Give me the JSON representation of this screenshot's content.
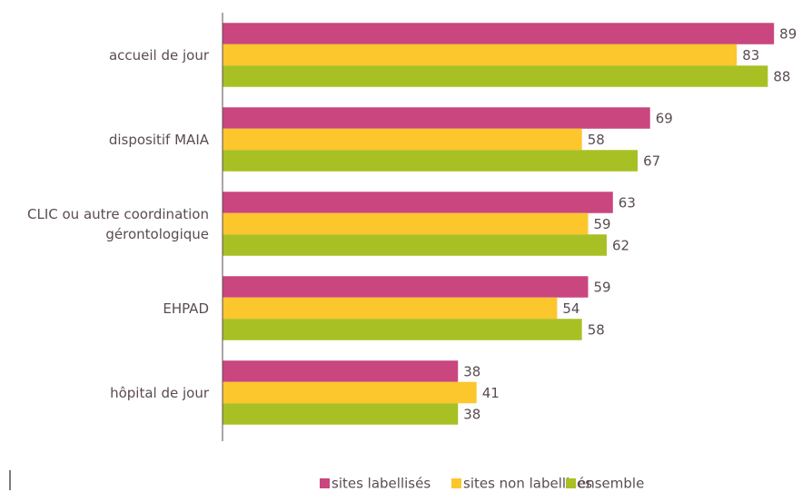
{
  "chart_data": {
    "type": "bar",
    "orientation": "horizontal",
    "categories": [
      "accueil de jour",
      "dispositif MAIA",
      "CLIC ou autre coordination gérontologique",
      "EHPAD",
      "hôpital de jour"
    ],
    "series": [
      {
        "name": "sites labellisés",
        "color": "#c9467e",
        "values": [
          89,
          69,
          63,
          59,
          38
        ]
      },
      {
        "name": "sites non labellisés",
        "color": "#fcc62d",
        "values": [
          83,
          58,
          59,
          54,
          41
        ]
      },
      {
        "name": "ensemble",
        "color": "#a8c023",
        "values": [
          88,
          67,
          62,
          58,
          38
        ]
      }
    ],
    "xlim": [
      0,
      90
    ]
  }
}
